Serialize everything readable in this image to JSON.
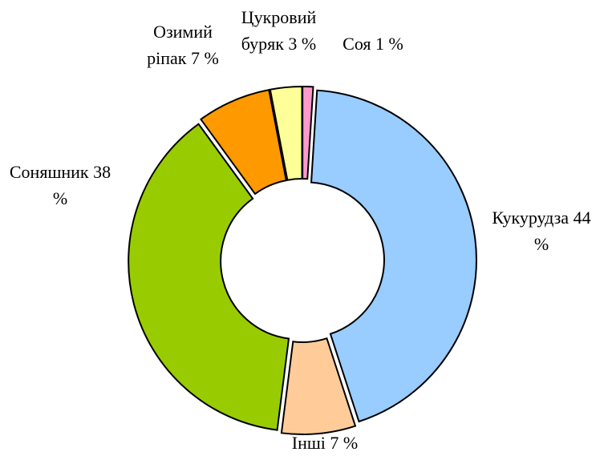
{
  "chart_data": {
    "type": "donut",
    "categories": [
      "Кукурудза",
      "Інші",
      "Соняшник",
      "Озимий ріпак",
      "Цукровий буряк",
      "Соя"
    ],
    "values": [
      44,
      7,
      38,
      7,
      3,
      1
    ],
    "value_labels": [
      "44 %",
      "7 %",
      "38 %",
      "7 %",
      "3 %",
      "1 %"
    ],
    "colors": [
      "#99ccff",
      "#ffcc99",
      "#99cc00",
      "#ff9900",
      "#ffff99",
      "#ff99cc"
    ]
  }
}
